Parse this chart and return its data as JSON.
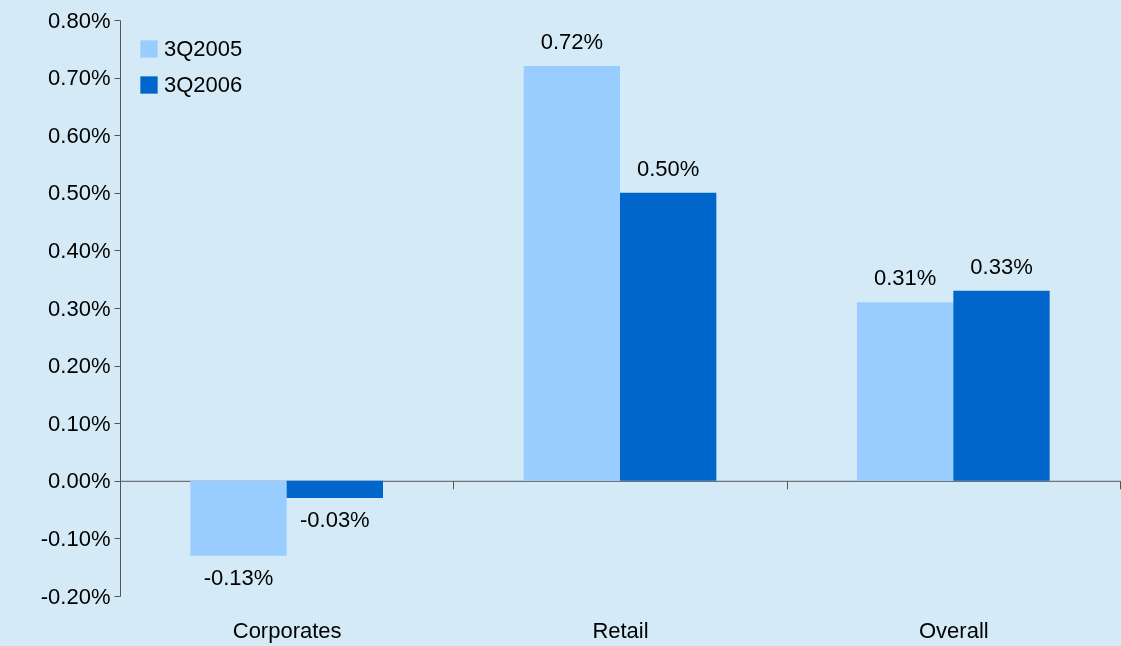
{
  "chart_data": {
    "type": "bar",
    "categories": [
      "Corporates",
      "Retail",
      "Overall"
    ],
    "series": [
      {
        "name": "3Q2005",
        "color": "#99ccff",
        "values": [
          -0.13,
          0.72,
          0.31
        ],
        "value_labels": [
          "-0.13%",
          "0.72%",
          "0.31%"
        ]
      },
      {
        "name": "3Q2006",
        "color": "#0066cc",
        "values": [
          -0.03,
          0.5,
          0.33
        ],
        "value_labels": [
          "-0.03%",
          "0.50%",
          "0.33%"
        ]
      }
    ],
    "ylim": [
      -0.2,
      0.8
    ],
    "yticks": [
      {
        "value": -0.2,
        "label": "-0.20%"
      },
      {
        "value": -0.1,
        "label": "-0.10%"
      },
      {
        "value": 0,
        "label": "0.00%"
      },
      {
        "value": 0.1,
        "label": "0.10%"
      },
      {
        "value": 0.2,
        "label": "0.20%"
      },
      {
        "value": 0.3,
        "label": "0.30%"
      },
      {
        "value": 0.4,
        "label": "0.40%"
      },
      {
        "value": 0.5,
        "label": "0.50%"
      },
      {
        "value": 0.6,
        "label": "0.60%"
      },
      {
        "value": 0.7,
        "label": "0.70%"
      },
      {
        "value": 0.8,
        "label": "0.80%"
      }
    ],
    "legend": "top left"
  }
}
